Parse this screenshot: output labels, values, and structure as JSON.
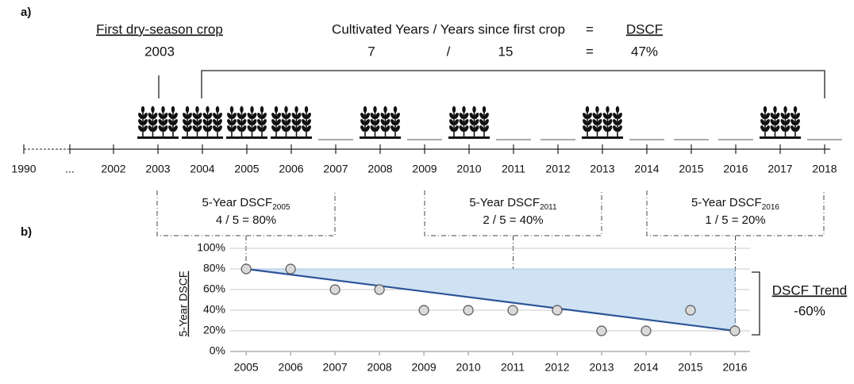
{
  "labels": {
    "a": "a)",
    "b": "b)"
  },
  "first_crop": {
    "title": "First dry-season crop",
    "year": "2003"
  },
  "formula": {
    "title": "Cultivated Years / Years since first crop",
    "equals": "=",
    "result_title": "DSCF",
    "cultivated": "7",
    "slash": "/",
    "since": "15",
    "equals_value": "=",
    "result": "47%"
  },
  "timeline": {
    "years": [
      {
        "label": "1990"
      },
      {
        "label": "..."
      },
      {
        "label": "2002"
      },
      {
        "label": "2003",
        "crop": true
      },
      {
        "label": "2004",
        "crop": true
      },
      {
        "label": "2005",
        "crop": true
      },
      {
        "label": "2006",
        "crop": true
      },
      {
        "label": "2007",
        "crop": false
      },
      {
        "label": "2008",
        "crop": true
      },
      {
        "label": "2009",
        "crop": false
      },
      {
        "label": "2010",
        "crop": true
      },
      {
        "label": "2011",
        "crop": false
      },
      {
        "label": "2012",
        "crop": false
      },
      {
        "label": "2013",
        "crop": true
      },
      {
        "label": "2014",
        "crop": false
      },
      {
        "label": "2015",
        "crop": false
      },
      {
        "label": "2016",
        "crop": false
      },
      {
        "label": "2017",
        "crop": true
      },
      {
        "label": "2018",
        "crop": false
      }
    ]
  },
  "windows": [
    {
      "title": "5-Year DSCF",
      "year": "2005",
      "calc": "4 / 5 = 80%"
    },
    {
      "title": "5-Year DSCF",
      "year": "2011",
      "calc": "2 / 5 = 40%"
    },
    {
      "title": "5-Year DSCF",
      "year": "2016",
      "calc": "1 / 5 = 20%"
    }
  ],
  "chart_data": {
    "type": "scatter",
    "y_label": "5-Year DSCF",
    "x": [
      2005,
      2006,
      2007,
      2008,
      2009,
      2010,
      2011,
      2012,
      2013,
      2014,
      2015,
      2016
    ],
    "values": [
      80,
      80,
      60,
      60,
      40,
      40,
      40,
      40,
      20,
      20,
      40,
      20
    ],
    "xlim": [
      2004.64,
      2016.34
    ],
    "xticks": [
      2005,
      2006,
      2007,
      2008,
      2009,
      2010,
      2011,
      2012,
      2013,
      2014,
      2015,
      2016
    ],
    "ylim": [
      0,
      100
    ],
    "yticks": [
      {
        "value": 0,
        "label": "0%"
      },
      {
        "value": 20,
        "label": "20%"
      },
      {
        "value": 40,
        "label": "40%"
      },
      {
        "value": 60,
        "label": "60%"
      },
      {
        "value": 80,
        "label": "80%"
      },
      {
        "value": 100,
        "label": "100%"
      }
    ],
    "grid": true,
    "point_color": "#d9d9d9",
    "trend": {
      "x": [
        2005,
        2016
      ],
      "values": [
        80,
        20
      ],
      "color": "#2e5597",
      "fill": "#cfe2f3"
    },
    "trend_title": "DSCF Trend",
    "trend_change": "-60%"
  }
}
